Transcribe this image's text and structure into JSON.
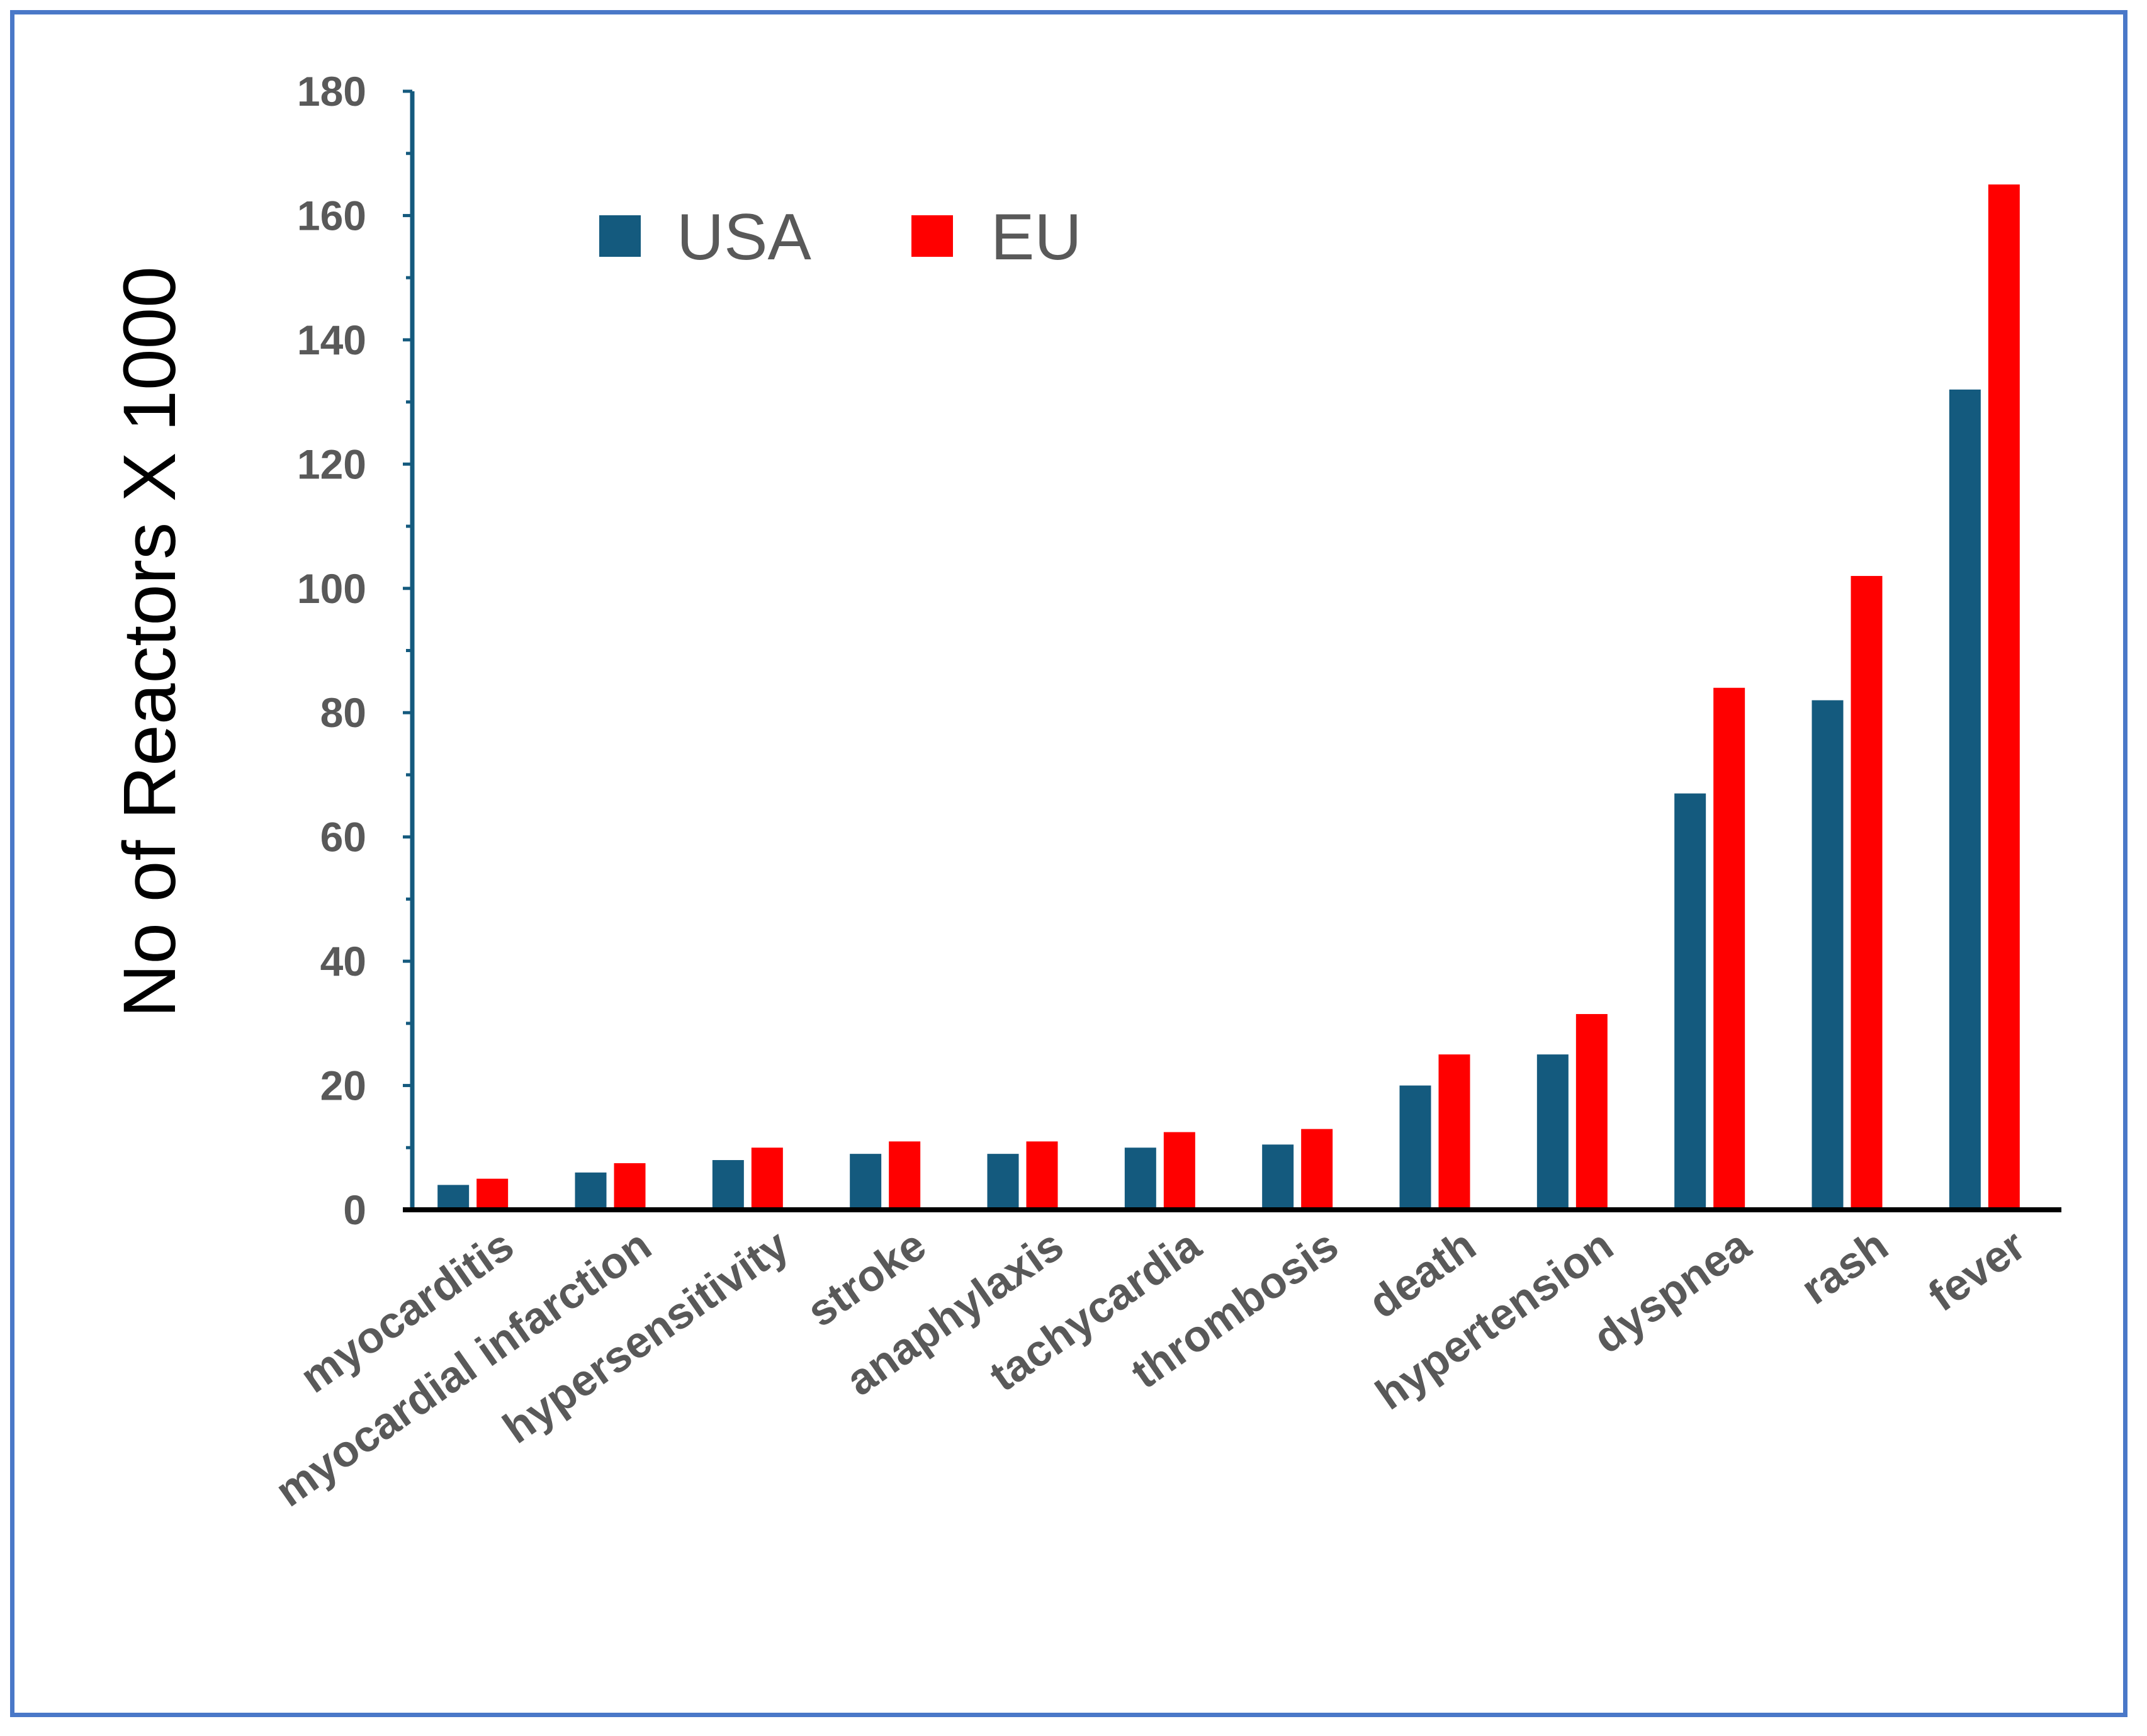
{
  "chart_data": {
    "type": "bar",
    "title": "",
    "xlabel": "",
    "ylabel": "No of Reactors X 1000",
    "ylim": [
      0,
      180
    ],
    "yticks": [
      0,
      20,
      40,
      60,
      80,
      100,
      120,
      140,
      160,
      180
    ],
    "grid": false,
    "legend_position": "top-left",
    "categories": [
      "myocarditis",
      "myocardial infarction",
      "hypersensitivity",
      "stroke",
      "anaphylaxis",
      "tachycardia",
      "thrombosis",
      "death",
      "hypertension",
      "dyspnea",
      "rash",
      "fever"
    ],
    "series": [
      {
        "name": "USA",
        "color": "#145a7e",
        "values": [
          4,
          6,
          8,
          9,
          9,
          10,
          10.5,
          20,
          25,
          67,
          82,
          132
        ]
      },
      {
        "name": "EU",
        "color": "#ff0000",
        "values": [
          5,
          7.5,
          10,
          11,
          11,
          12.5,
          13,
          25,
          31.5,
          84,
          102,
          165
        ]
      }
    ]
  },
  "colors": {
    "frame": "#4a78c8",
    "axis_y": "#145a7e",
    "axis_x": "#000000",
    "tick_text": "#595959"
  }
}
